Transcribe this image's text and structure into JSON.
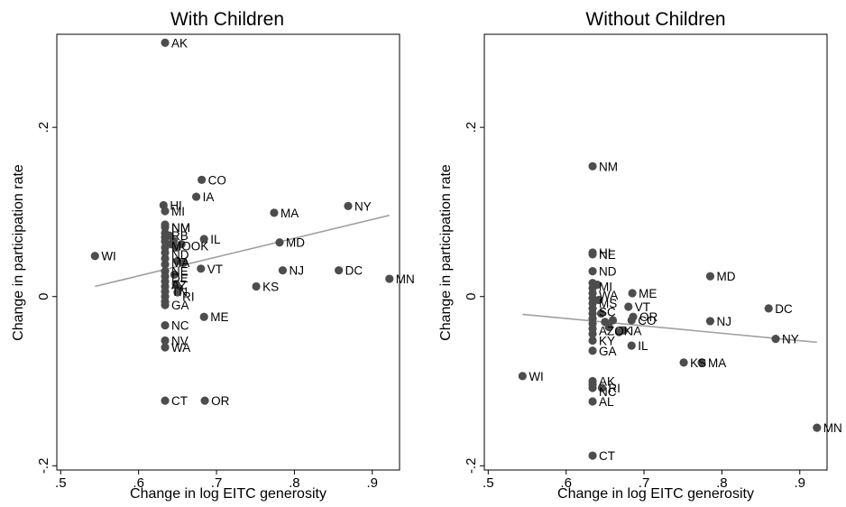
{
  "chart_data": [
    {
      "type": "scatter",
      "title": "With Children",
      "xlabel": "Change in log EITC generosity",
      "ylabel": "Change in participation rate",
      "xlim": [
        0.495,
        0.935
      ],
      "ylim": [
        -0.205,
        0.31
      ],
      "xticks": [
        0.5,
        0.6,
        0.7,
        0.8,
        0.9
      ],
      "xtick_labels": [
        ".5",
        ".6",
        ".7",
        ".8",
        ".9"
      ],
      "yticks": [
        -0.2,
        0,
        0.2
      ],
      "ytick_labels": [
        "-.2",
        "0",
        ".2"
      ],
      "grid": false,
      "colors": {
        "points": "#4d4d4d",
        "fit": "#a0a0a0"
      },
      "fit_line": {
        "x": [
          0.544,
          0.922
        ],
        "y": [
          0.012,
          0.096
        ]
      },
      "points": [
        {
          "label": "AK",
          "x": 0.634,
          "y": 0.3
        },
        {
          "label": "CO",
          "x": 0.681,
          "y": 0.138
        },
        {
          "label": "IA",
          "x": 0.674,
          "y": 0.118
        },
        {
          "label": "HI",
          "x": 0.632,
          "y": 0.108
        },
        {
          "label": "MI",
          "x": 0.634,
          "y": 0.101
        },
        {
          "label": "NM",
          "x": 0.634,
          "y": 0.082
        },
        {
          "label": "",
          "x": 0.634,
          "y": 0.085
        },
        {
          "label": "",
          "x": 0.634,
          "y": 0.075
        },
        {
          "label": "",
          "x": 0.634,
          "y": 0.07
        },
        {
          "label": "",
          "x": 0.634,
          "y": 0.065
        },
        {
          "label": "",
          "x": 0.634,
          "y": 0.058
        },
        {
          "label": "",
          "x": 0.634,
          "y": 0.052
        },
        {
          "label": "",
          "x": 0.634,
          "y": 0.045
        },
        {
          "label": "",
          "x": 0.634,
          "y": 0.038
        },
        {
          "label": "",
          "x": 0.634,
          "y": 0.03
        },
        {
          "label": "",
          "x": 0.634,
          "y": 0.024
        },
        {
          "label": "",
          "x": 0.634,
          "y": 0.018
        },
        {
          "label": "",
          "x": 0.634,
          "y": 0.012
        },
        {
          "label": "",
          "x": 0.634,
          "y": 0.006
        },
        {
          "label": "",
          "x": 0.634,
          "y": 0.0
        },
        {
          "label": "",
          "x": 0.634,
          "y": -0.006
        },
        {
          "label": "",
          "x": 0.634,
          "y": -0.01
        },
        {
          "label": "",
          "x": 0.64,
          "y": 0.072
        },
        {
          "label": "",
          "x": 0.642,
          "y": 0.062
        },
        {
          "label": "",
          "x": 0.645,
          "y": 0.066
        },
        {
          "label": "",
          "x": 0.648,
          "y": 0.058
        },
        {
          "label": "",
          "x": 0.65,
          "y": 0.042
        },
        {
          "label": "",
          "x": 0.646,
          "y": 0.026
        },
        {
          "label": "",
          "x": 0.648,
          "y": 0.015
        },
        {
          "label": "",
          "x": 0.65,
          "y": 0.005
        },
        {
          "label": "",
          "x": 0.652,
          "y": 0.01
        },
        {
          "label": "",
          "x": 0.655,
          "y": 0.062
        },
        {
          "label": "",
          "x": 0.658,
          "y": 0.04
        },
        {
          "label": "IL",
          "x": 0.684,
          "y": 0.068
        },
        {
          "label": "MA",
          "x": 0.774,
          "y": 0.099
        },
        {
          "label": "NY",
          "x": 0.869,
          "y": 0.107
        },
        {
          "label": "MD",
          "x": 0.781,
          "y": 0.064
        },
        {
          "label": "WI",
          "x": 0.544,
          "y": 0.048
        },
        {
          "label": "VT",
          "x": 0.68,
          "y": 0.033
        },
        {
          "label": "NJ",
          "x": 0.785,
          "y": 0.031
        },
        {
          "label": "DC",
          "x": 0.857,
          "y": 0.031
        },
        {
          "label": "MN",
          "x": 0.922,
          "y": 0.021
        },
        {
          "label": "KS",
          "x": 0.751,
          "y": 0.012
        },
        {
          "label": "ME",
          "x": 0.684,
          "y": -0.024
        },
        {
          "label": "NC",
          "x": 0.634,
          "y": -0.034
        },
        {
          "label": "NV",
          "x": 0.634,
          "y": -0.052
        },
        {
          "label": "WA",
          "x": 0.634,
          "y": -0.06
        },
        {
          "label": "CT",
          "x": 0.634,
          "y": -0.123
        },
        {
          "label": "OR",
          "x": 0.685,
          "y": -0.123
        }
      ],
      "cluster_labels": [
        {
          "text": "NM",
          "x": 0.634,
          "y": 0.082
        },
        {
          "text": "RB",
          "x": 0.634,
          "y": 0.072
        },
        {
          "text": "MOOK",
          "x": 0.634,
          "y": 0.06
        },
        {
          "text": "ND",
          "x": 0.634,
          "y": 0.05
        },
        {
          "text": "MA",
          "x": 0.634,
          "y": 0.04
        },
        {
          "text": "NE",
          "x": 0.634,
          "y": 0.03
        },
        {
          "text": "DE",
          "x": 0.634,
          "y": 0.022
        },
        {
          "text": "AZ",
          "x": 0.634,
          "y": 0.014
        },
        {
          "text": "TN",
          "x": 0.634,
          "y": 0.006
        },
        {
          "text": "RI",
          "x": 0.648,
          "y": 0.0
        },
        {
          "text": "GA",
          "x": 0.634,
          "y": -0.01
        }
      ]
    },
    {
      "type": "scatter",
      "title": "Without Children",
      "xlabel": "Change in log EITC generosity",
      "ylabel": "Change in participation rate",
      "xlim": [
        0.495,
        0.935
      ],
      "ylim": [
        -0.205,
        0.31
      ],
      "xticks": [
        0.5,
        0.6,
        0.7,
        0.8,
        0.9
      ],
      "xtick_labels": [
        ".5",
        ".6",
        ".7",
        ".8",
        ".9"
      ],
      "yticks": [
        -0.2,
        0,
        0.2
      ],
      "ytick_labels": [
        "-.2",
        "0",
        ".2"
      ],
      "grid": false,
      "colors": {
        "points": "#4d4d4d",
        "fit": "#a0a0a0"
      },
      "fit_line": {
        "x": [
          0.544,
          0.922
        ],
        "y": [
          -0.021,
          -0.054
        ]
      },
      "points": [
        {
          "label": "NM",
          "x": 0.634,
          "y": 0.154
        },
        {
          "label": "HI",
          "x": 0.634,
          "y": 0.052
        },
        {
          "label": "NE",
          "x": 0.634,
          "y": 0.05
        },
        {
          "label": "ND",
          "x": 0.634,
          "y": 0.03
        },
        {
          "label": "",
          "x": 0.634,
          "y": 0.016
        },
        {
          "label": "",
          "x": 0.634,
          "y": 0.01
        },
        {
          "label": "",
          "x": 0.634,
          "y": 0.004
        },
        {
          "label": "",
          "x": 0.634,
          "y": -0.002
        },
        {
          "label": "",
          "x": 0.634,
          "y": -0.008
        },
        {
          "label": "",
          "x": 0.634,
          "y": -0.014
        },
        {
          "label": "",
          "x": 0.634,
          "y": -0.02
        },
        {
          "label": "",
          "x": 0.634,
          "y": -0.026
        },
        {
          "label": "",
          "x": 0.634,
          "y": -0.032
        },
        {
          "label": "",
          "x": 0.634,
          "y": -0.038
        },
        {
          "label": "",
          "x": 0.634,
          "y": -0.044
        },
        {
          "label": "",
          "x": 0.64,
          "y": 0.014
        },
        {
          "label": "",
          "x": 0.642,
          "y": -0.004
        },
        {
          "label": "",
          "x": 0.645,
          "y": -0.02
        },
        {
          "label": "",
          "x": 0.65,
          "y": -0.03
        },
        {
          "label": "",
          "x": 0.655,
          "y": -0.036
        },
        {
          "label": "",
          "x": 0.66,
          "y": -0.028
        },
        {
          "label": "",
          "x": 0.668,
          "y": -0.042
        },
        {
          "label": "",
          "x": 0.672,
          "y": -0.04
        },
        {
          "label": "ME",
          "x": 0.685,
          "y": 0.004
        },
        {
          "label": "VT",
          "x": 0.68,
          "y": -0.012
        },
        {
          "label": "OR",
          "x": 0.686,
          "y": -0.024
        },
        {
          "label": "CO",
          "x": 0.684,
          "y": -0.028
        },
        {
          "label": "IA",
          "x": 0.674,
          "y": -0.04
        },
        {
          "label": "MD",
          "x": 0.785,
          "y": 0.024
        },
        {
          "label": "DC",
          "x": 0.86,
          "y": -0.014
        },
        {
          "label": "NJ",
          "x": 0.785,
          "y": -0.029
        },
        {
          "label": "NY",
          "x": 0.869,
          "y": -0.05
        },
        {
          "label": "KY",
          "x": 0.634,
          "y": -0.052
        },
        {
          "label": "IL",
          "x": 0.684,
          "y": -0.058
        },
        {
          "label": "GA",
          "x": 0.634,
          "y": -0.064
        },
        {
          "label": "KS",
          "x": 0.751,
          "y": -0.078
        },
        {
          "label": "MA",
          "x": 0.774,
          "y": -0.078
        },
        {
          "label": "WI",
          "x": 0.544,
          "y": -0.094
        },
        {
          "label": "",
          "x": 0.634,
          "y": -0.1
        },
        {
          "label": "",
          "x": 0.634,
          "y": -0.104
        },
        {
          "label": "",
          "x": 0.634,
          "y": -0.108
        },
        {
          "label": "RI",
          "x": 0.646,
          "y": -0.108
        },
        {
          "label": "AL",
          "x": 0.634,
          "y": -0.124
        },
        {
          "label": "CT",
          "x": 0.634,
          "y": -0.188
        },
        {
          "label": "MN",
          "x": 0.922,
          "y": -0.155
        }
      ],
      "cluster_labels": [
        {
          "text": "MI",
          "x": 0.634,
          "y": 0.012
        },
        {
          "text": "WA",
          "x": 0.634,
          "y": 0.002
        },
        {
          "text": "MS",
          "x": 0.634,
          "y": -0.008
        },
        {
          "text": "SC",
          "x": 0.634,
          "y": -0.018
        },
        {
          "text": "AZOK",
          "x": 0.634,
          "y": -0.04
        },
        {
          "text": "AK",
          "x": 0.634,
          "y": -0.1
        },
        {
          "text": "NC",
          "x": 0.634,
          "y": -0.112
        }
      ]
    }
  ]
}
